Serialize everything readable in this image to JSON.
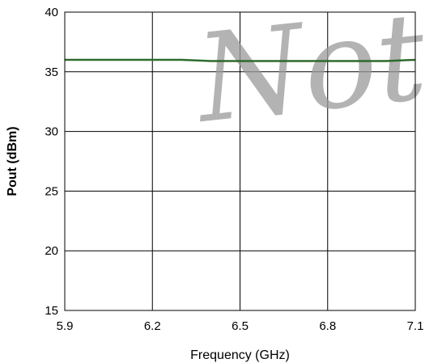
{
  "chart_data": {
    "type": "line",
    "xlabel": "Frequency (GHz)",
    "ylabel": "Pout (dBm)",
    "xlim": [
      5.9,
      7.1
    ],
    "ylim": [
      15,
      40
    ],
    "xticks": [
      5.9,
      6.2,
      6.5,
      6.8,
      7.1
    ],
    "yticks": [
      15,
      20,
      25,
      30,
      35,
      40
    ],
    "x_tick_labels": [
      "5.9",
      "6.2",
      "6.5",
      "6.8",
      "7.1"
    ],
    "y_tick_labels": [
      "15",
      "20",
      "25",
      "30",
      "35",
      "40"
    ],
    "grid": true,
    "series": [
      {
        "color": "#2e6b2e",
        "x": [
          5.9,
          6.0,
          6.1,
          6.2,
          6.3,
          6.4,
          6.5,
          6.6,
          6.7,
          6.8,
          6.9,
          7.0,
          7.1
        ],
        "y": [
          36.0,
          36.0,
          36.0,
          36.0,
          36.0,
          35.9,
          35.9,
          35.9,
          35.9,
          35.9,
          35.9,
          35.9,
          36.0
        ]
      }
    ],
    "watermark": "Not fo"
  }
}
